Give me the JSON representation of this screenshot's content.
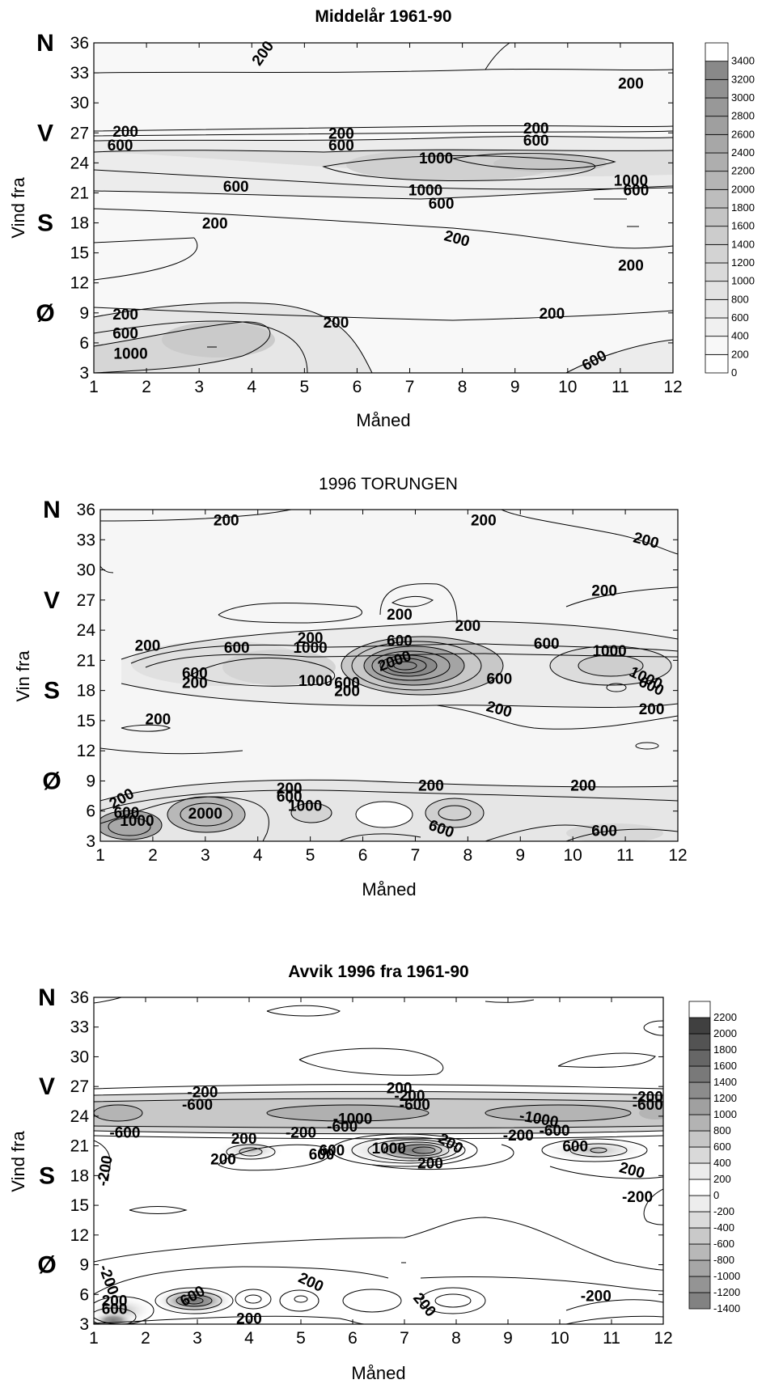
{
  "chart_data": [
    {
      "type": "contour",
      "title": "Middelår 1961-90",
      "xlabel": "Måned",
      "ylabel": "Vind fra",
      "x_ticks": [
        1,
        2,
        3,
        4,
        5,
        6,
        7,
        8,
        9,
        10,
        11,
        12
      ],
      "y_ticks": [
        3,
        6,
        9,
        12,
        15,
        18,
        21,
        24,
        27,
        30,
        33,
        36
      ],
      "xlim": [
        1,
        12
      ],
      "ylim": [
        3,
        36
      ],
      "direction_labels": [
        {
          "text": "N",
          "y": 36
        },
        {
          "text": "V",
          "y": 27
        },
        {
          "text": "S",
          "y": 18
        },
        {
          "text": "Ø",
          "y": 9
        }
      ],
      "colorbar": [
        "0",
        "200",
        "400",
        "600",
        "800",
        "1000",
        "1200",
        "1400",
        "1600",
        "1800",
        "2000",
        "2200",
        "2400",
        "2600",
        "2800",
        "3000",
        "3200",
        "3400"
      ],
      "contour_labels": [
        {
          "text": "200",
          "x": 4.2,
          "y": 35
        },
        {
          "text": "200",
          "x": 11.2,
          "y": 32
        },
        {
          "text": "200",
          "x": 1.6,
          "y": 27.2
        },
        {
          "text": "200",
          "x": 5.7,
          "y": 27
        },
        {
          "text": "200",
          "x": 9.4,
          "y": 27.5
        },
        {
          "text": "600",
          "x": 1.5,
          "y": 25.8
        },
        {
          "text": "600",
          "x": 5.7,
          "y": 25.8
        },
        {
          "text": "600",
          "x": 9.4,
          "y": 26.3
        },
        {
          "text": "1000",
          "x": 7.5,
          "y": 24.5
        },
        {
          "text": "1000",
          "x": 11.2,
          "y": 22.3
        },
        {
          "text": "600",
          "x": 11.3,
          "y": 21.3
        },
        {
          "text": "600",
          "x": 3.7,
          "y": 21.7
        },
        {
          "text": "1000",
          "x": 7.3,
          "y": 21.3
        },
        {
          "text": "600",
          "x": 7.6,
          "y": 20
        },
        {
          "text": "200",
          "x": 3.3,
          "y": 18
        },
        {
          "text": "200",
          "x": 7.9,
          "y": 16.5
        },
        {
          "text": "200",
          "x": 11.2,
          "y": 13.8
        },
        {
          "text": "200",
          "x": 1.6,
          "y": 8.9
        },
        {
          "text": "200",
          "x": 5.6,
          "y": 8.1
        },
        {
          "text": "200",
          "x": 9.7,
          "y": 9
        },
        {
          "text": "600",
          "x": 1.6,
          "y": 7
        },
        {
          "text": "1000",
          "x": 1.7,
          "y": 5
        },
        {
          "text": "600",
          "x": 10.5,
          "y": 4.3
        }
      ]
    },
    {
      "type": "contour",
      "title": "1996 TORUNGEN",
      "xlabel": "Måned",
      "ylabel": "Vin fra",
      "x_ticks": [
        1,
        2,
        3,
        4,
        5,
        6,
        7,
        8,
        9,
        10,
        11,
        12
      ],
      "y_ticks": [
        3,
        6,
        9,
        12,
        15,
        18,
        21,
        24,
        27,
        30,
        33,
        36
      ],
      "xlim": [
        1,
        12
      ],
      "ylim": [
        3,
        36
      ],
      "direction_labels": [
        {
          "text": "N",
          "y": 36
        },
        {
          "text": "V",
          "y": 27
        },
        {
          "text": "S",
          "y": 18
        },
        {
          "text": "Ø",
          "y": 9
        }
      ],
      "contour_labels": [
        {
          "text": "200",
          "x": 3.4,
          "y": 35
        },
        {
          "text": "200",
          "x": 8.3,
          "y": 35
        },
        {
          "text": "200",
          "x": 11.4,
          "y": 33
        },
        {
          "text": "200",
          "x": 10.6,
          "y": 28
        },
        {
          "text": "200",
          "x": 6.7,
          "y": 25.6
        },
        {
          "text": "200",
          "x": 8.0,
          "y": 24.5
        },
        {
          "text": "200",
          "x": 1.9,
          "y": 22.5
        },
        {
          "text": "600",
          "x": 3.6,
          "y": 22.3
        },
        {
          "text": "200",
          "x": 5.0,
          "y": 23.3
        },
        {
          "text": "1000",
          "x": 5.0,
          "y": 22.3
        },
        {
          "text": "600",
          "x": 6.7,
          "y": 23
        },
        {
          "text": "2000",
          "x": 6.6,
          "y": 21
        },
        {
          "text": "600",
          "x": 9.5,
          "y": 22.7
        },
        {
          "text": "1000",
          "x": 10.7,
          "y": 22
        },
        {
          "text": "600",
          "x": 2.8,
          "y": 19.8
        },
        {
          "text": "200",
          "x": 2.8,
          "y": 18.8
        },
        {
          "text": "1000",
          "x": 5.1,
          "y": 19
        },
        {
          "text": "600",
          "x": 5.7,
          "y": 18.8
        },
        {
          "text": "200",
          "x": 5.7,
          "y": 18
        },
        {
          "text": "600",
          "x": 8.6,
          "y": 19.2
        },
        {
          "text": "1000",
          "x": 11.4,
          "y": 19.3
        },
        {
          "text": "600",
          "x": 11.5,
          "y": 18.5
        },
        {
          "text": "200",
          "x": 8.6,
          "y": 16.2
        },
        {
          "text": "200",
          "x": 11.5,
          "y": 16.2
        },
        {
          "text": "200",
          "x": 2.1,
          "y": 15.2
        },
        {
          "text": "200",
          "x": 4.6,
          "y": 8.3
        },
        {
          "text": "600",
          "x": 4.6,
          "y": 7.5
        },
        {
          "text": "1000",
          "x": 4.9,
          "y": 6.6
        },
        {
          "text": "200",
          "x": 7.3,
          "y": 8.6
        },
        {
          "text": "200",
          "x": 10.2,
          "y": 8.6
        },
        {
          "text": "200",
          "x": 1.4,
          "y": 7.3
        },
        {
          "text": "600",
          "x": 1.5,
          "y": 5.9
        },
        {
          "text": "1000",
          "x": 1.7,
          "y": 5.1
        },
        {
          "text": "2000",
          "x": 3.0,
          "y": 5.8
        },
        {
          "text": "600",
          "x": 7.5,
          "y": 4.3
        },
        {
          "text": "600",
          "x": 10.6,
          "y": 4.1
        }
      ]
    },
    {
      "type": "contour",
      "title": "Avvik 1996 fra 1961-90",
      "xlabel": "Måned",
      "ylabel": "Vind fra",
      "x_ticks": [
        1,
        2,
        3,
        4,
        5,
        6,
        7,
        8,
        9,
        10,
        11,
        12
      ],
      "y_ticks": [
        3,
        6,
        9,
        12,
        15,
        18,
        21,
        24,
        27,
        30,
        33,
        36
      ],
      "xlim": [
        1,
        12
      ],
      "ylim": [
        3,
        36
      ],
      "direction_labels": [
        {
          "text": "N",
          "y": 36
        },
        {
          "text": "V",
          "y": 27
        },
        {
          "text": "S",
          "y": 18
        },
        {
          "text": "Ø",
          "y": 9
        }
      ],
      "colorbar": [
        "-1400",
        "-1200",
        "-1000",
        "-800",
        "-600",
        "-400",
        "-200",
        "0",
        "200",
        "400",
        "600",
        "800",
        "1000",
        "1200",
        "1400",
        "1600",
        "1800",
        "2000",
        "2200"
      ],
      "contour_labels": [
        {
          "text": "-200",
          "x": 3.1,
          "y": 26.5
        },
        {
          "text": "-600",
          "x": 3.0,
          "y": 25.2
        },
        {
          "text": "200",
          "x": 6.9,
          "y": 26.9
        },
        {
          "text": "-200",
          "x": 7.1,
          "y": 26.1
        },
        {
          "text": "-600",
          "x": 7.2,
          "y": 25.2
        },
        {
          "text": "-200",
          "x": 11.7,
          "y": 26
        },
        {
          "text": "-600",
          "x": 11.7,
          "y": 25.2
        },
        {
          "text": "-1000",
          "x": 6.0,
          "y": 23.8
        },
        {
          "text": "-1000",
          "x": 9.6,
          "y": 23.8
        },
        {
          "text": "-600",
          "x": 1.6,
          "y": 22.4
        },
        {
          "text": "200",
          "x": 3.9,
          "y": 21.8
        },
        {
          "text": "-200",
          "x": 5.0,
          "y": 22.4
        },
        {
          "text": "-600",
          "x": 5.8,
          "y": 23
        },
        {
          "text": "-200",
          "x": 9.2,
          "y": 22.1
        },
        {
          "text": "-600",
          "x": 9.9,
          "y": 22.6
        },
        {
          "text": "600",
          "x": 5.6,
          "y": 20.6
        },
        {
          "text": "1000",
          "x": 6.7,
          "y": 20.8
        },
        {
          "text": "200",
          "x": 7.9,
          "y": 21.3
        },
        {
          "text": "600",
          "x": 10.3,
          "y": 21
        },
        {
          "text": "200",
          "x": 3.5,
          "y": 19.7
        },
        {
          "text": "600",
          "x": 5.4,
          "y": 20.2
        },
        {
          "text": "200",
          "x": 7.5,
          "y": 19.3
        },
        {
          "text": "-200",
          "x": 1.2,
          "y": 18.5
        },
        {
          "text": "200",
          "x": 11.4,
          "y": 18.6
        },
        {
          "text": "-200",
          "x": 11.5,
          "y": 15.9
        },
        {
          "text": "-200",
          "x": 1.3,
          "y": 7.5
        },
        {
          "text": "200",
          "x": 5.2,
          "y": 7.3
        },
        {
          "text": "200",
          "x": 7.4,
          "y": 5
        },
        {
          "text": "-200",
          "x": 10.7,
          "y": 5.9
        },
        {
          "text": "200",
          "x": 1.4,
          "y": 5.4
        },
        {
          "text": "600",
          "x": 1.4,
          "y": 4.6
        },
        {
          "text": "600",
          "x": 2.9,
          "y": 5.9
        },
        {
          "text": "200",
          "x": 4.0,
          "y": 3.6
        }
      ]
    }
  ]
}
